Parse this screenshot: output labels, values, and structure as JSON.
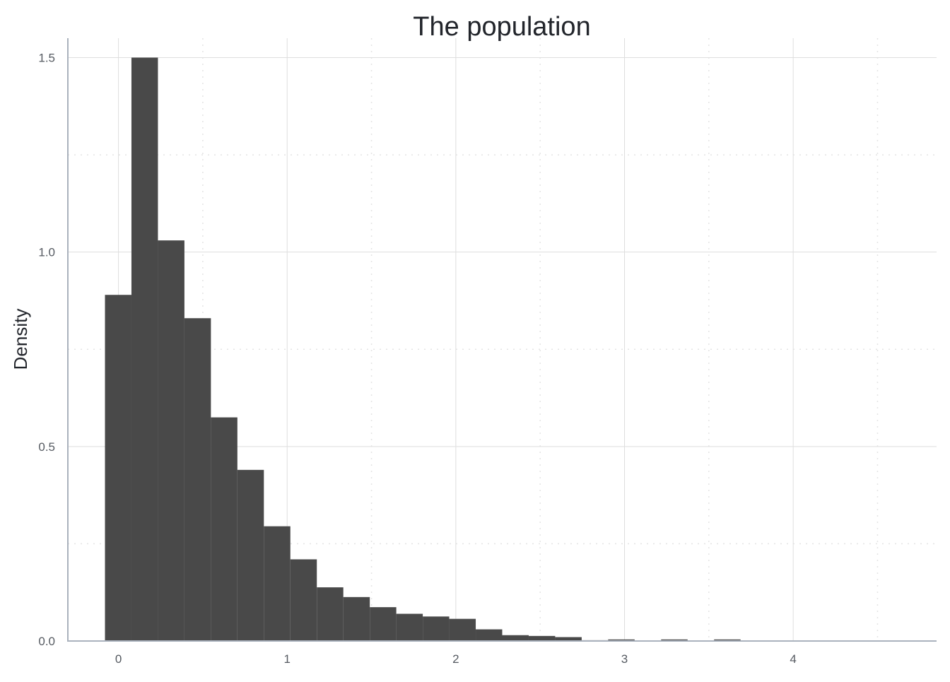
{
  "chart_data": {
    "type": "bar",
    "subtype": "histogram",
    "title": "The population",
    "xlabel": "",
    "ylabel": "Density",
    "xlim": [
      -0.3,
      4.85
    ],
    "ylim": [
      0,
      1.55
    ],
    "x_ticks": [
      0,
      1,
      2,
      3,
      4
    ],
    "x_tick_labels": [
      "0",
      "1",
      "2",
      "3",
      "4"
    ],
    "y_ticks": [
      0,
      0.5,
      1.0,
      1.5
    ],
    "y_tick_labels": [
      "0.0",
      "0.5",
      "1.0",
      "1.5"
    ],
    "x_minor_gridlines": [
      0.5,
      1.5,
      2.5,
      3.5,
      4.5
    ],
    "y_minor_gridlines": [
      0.25,
      0.75,
      1.25
    ],
    "grid": true,
    "bar_color": "#494949",
    "bin_width": 0.157,
    "bin_starts": [
      -0.08,
      0.077,
      0.234,
      0.391,
      0.548,
      0.705,
      0.862,
      1.019,
      1.176,
      1.333,
      1.49,
      1.647,
      1.804,
      1.961,
      2.118,
      2.275,
      2.432,
      2.589,
      2.746,
      2.903,
      3.06,
      3.217,
      3.374,
      3.531
    ],
    "values": [
      0.89,
      1.5,
      1.03,
      0.83,
      0.575,
      0.44,
      0.295,
      0.21,
      0.138,
      0.113,
      0.087,
      0.07,
      0.063,
      0.057,
      0.03,
      0.015,
      0.013,
      0.01,
      0.002,
      0.004,
      0.001,
      0.004,
      0.001,
      0.004
    ]
  },
  "colors": {
    "bar": "#494949",
    "axis": "#aab2bd",
    "major_grid": "#dedede",
    "minor_grid": "#e4e4e4",
    "title": "#22252b",
    "tick_label": "#555a61"
  }
}
